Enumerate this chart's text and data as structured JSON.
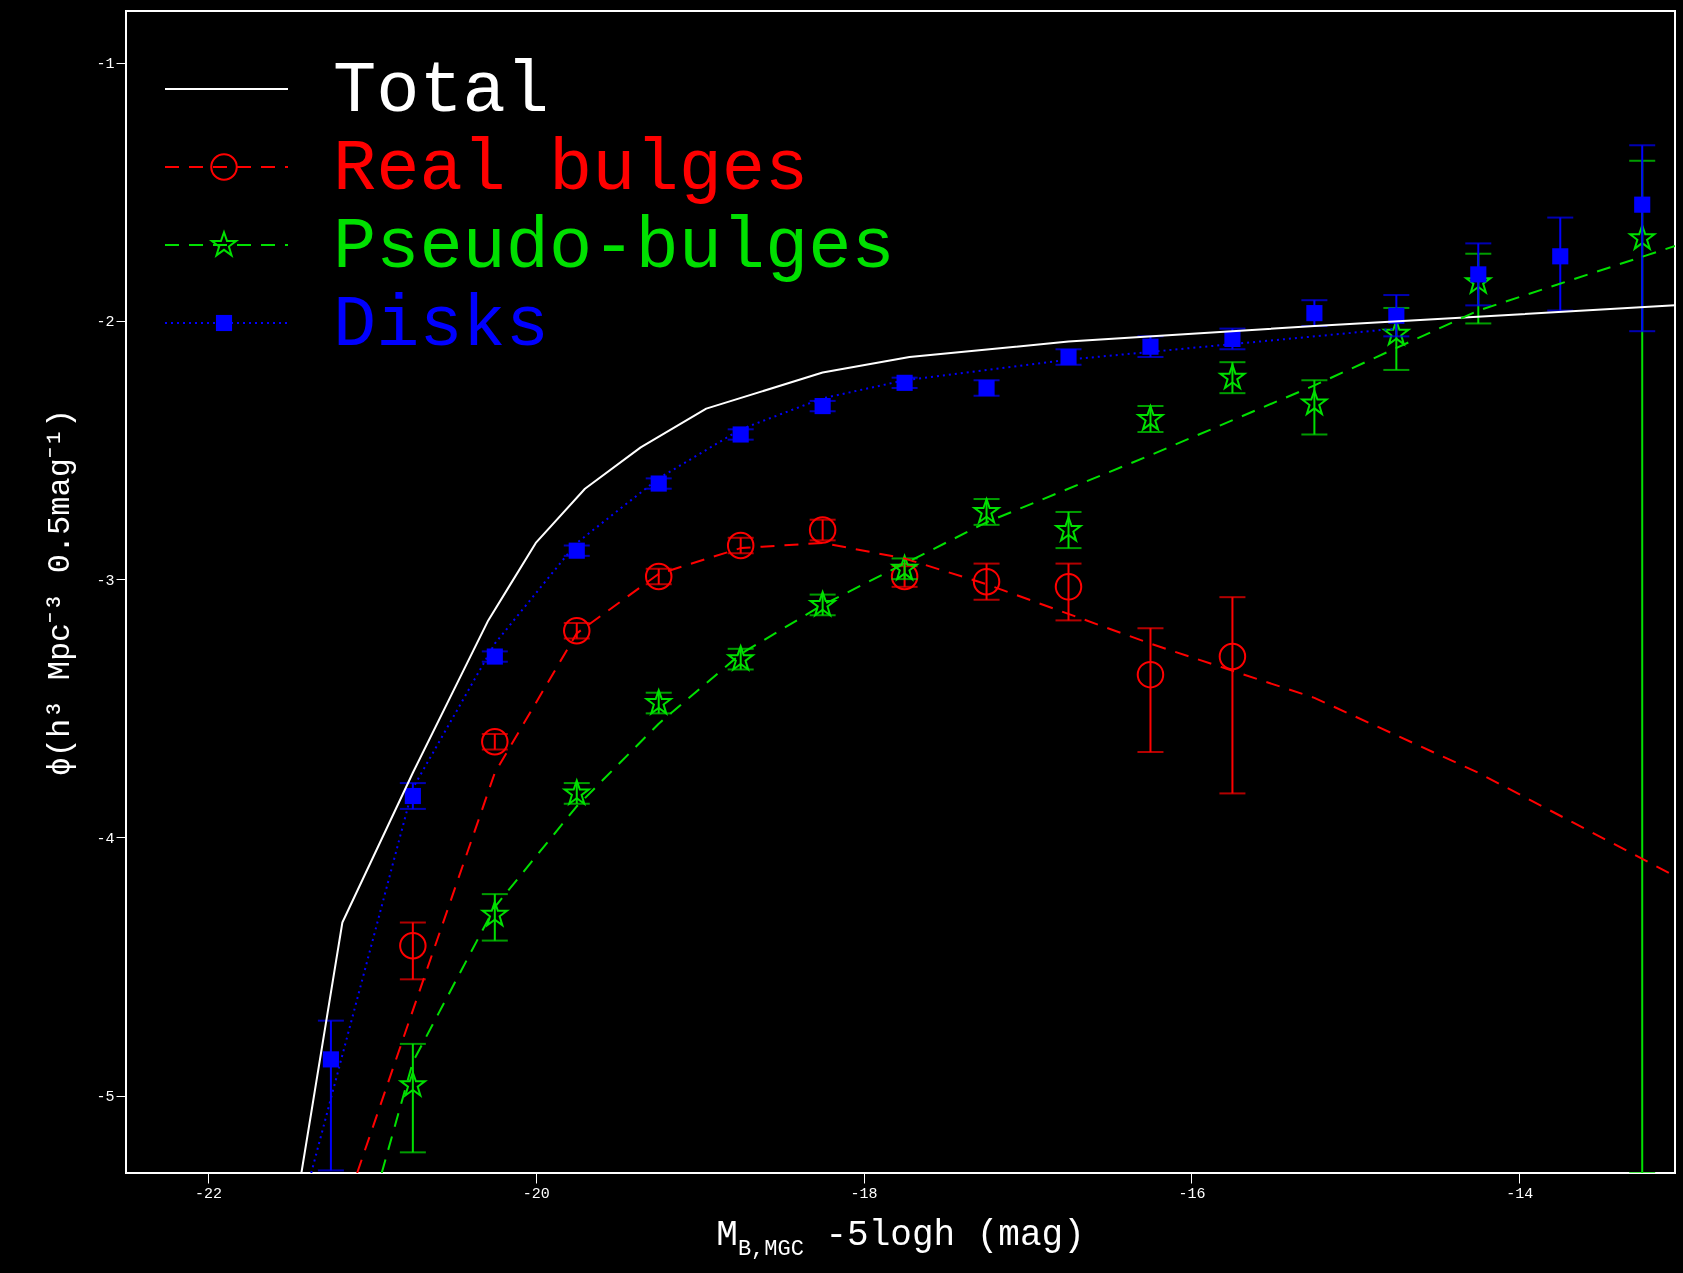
{
  "chart_data": {
    "type": "scatter",
    "xlabel": "M$_{B,MGC}$ -5logh (mag)",
    "ylabel": "ϕ(h³ Mpc⁻³ 0.5mag⁻¹)",
    "xlim": [
      -22.5,
      -13.05
    ],
    "ylim": [
      -5.3,
      -0.8
    ],
    "xticks": [
      -22,
      -20,
      -18,
      -16,
      -14
    ],
    "yticks": [
      -1,
      -2,
      -3,
      -4,
      -5
    ],
    "grid": false,
    "legend": "top left",
    "series": [
      {
        "name": "Total",
        "type": "line",
        "color": "#ffffff",
        "line_style": "solid",
        "x": [
          -21.43,
          -21.18,
          -20.75,
          -20.29,
          -20.0,
          -19.7,
          -19.36,
          -18.96,
          -18.25,
          -17.72,
          -16.75,
          -15.25,
          -13.05
        ],
        "values": [
          -5.3,
          -4.33,
          -3.75,
          -3.16,
          -2.86,
          -2.65,
          -2.49,
          -2.34,
          -2.2,
          -2.14,
          -2.08,
          -2.02,
          -1.94
        ]
      },
      {
        "name": "Real bulges",
        "color": "#ff0000",
        "marker": "circle",
        "line_style": "dashed",
        "x": [
          -20.75,
          -20.25,
          -19.75,
          -19.25,
          -18.75,
          -18.25,
          -17.75,
          -17.25,
          -16.75,
          -16.25,
          -15.75
        ],
        "values": [
          -4.42,
          -3.63,
          -3.2,
          -2.99,
          -2.87,
          -2.81,
          -2.99,
          -3.01,
          -3.03,
          -3.37,
          -3.3
        ],
        "errors": [
          [
            -4.55,
            -4.33
          ],
          [
            -3.66,
            -3.6
          ],
          [
            -3.23,
            -3.17
          ],
          [
            -3.02,
            -2.96
          ],
          [
            -2.9,
            -2.84
          ],
          [
            -2.85,
            -2.77
          ],
          [
            -3.03,
            -2.95
          ],
          [
            -3.08,
            -2.94
          ],
          [
            -3.16,
            -2.94
          ],
          [
            -3.67,
            -3.19
          ],
          [
            -3.83,
            -3.07
          ]
        ]
      },
      {
        "name": "Pseudo-bulges",
        "color": "#00e000",
        "marker": "star",
        "line_style": "dashed",
        "x": [
          -20.75,
          -20.25,
          -19.75,
          -19.25,
          -18.75,
          -18.25,
          -17.75,
          -17.25,
          -16.75,
          -16.25,
          -15.75,
          -15.25,
          -14.75,
          -14.25,
          -13.25
        ],
        "values": [
          -4.96,
          -4.3,
          -3.83,
          -3.48,
          -3.31,
          -3.1,
          -2.96,
          -2.74,
          -2.81,
          -2.38,
          -2.22,
          -2.32,
          -2.05,
          -1.85,
          -1.68
        ],
        "errors": [
          [
            -5.22,
            -4.8
          ],
          [
            -4.4,
            -4.22
          ],
          [
            -3.87,
            -3.79
          ],
          [
            -3.52,
            -3.44
          ],
          [
            -3.35,
            -3.27
          ],
          [
            -3.14,
            -3.06
          ],
          [
            -3.0,
            -2.92
          ],
          [
            -2.79,
            -2.69
          ],
          [
            -2.88,
            -2.74
          ],
          [
            -2.43,
            -2.33
          ],
          [
            -2.28,
            -2.16
          ],
          [
            -2.44,
            -2.23
          ],
          [
            -2.19,
            -1.95
          ],
          [
            -2.01,
            -1.74
          ],
          [
            -5.3,
            -1.38
          ]
        ]
      },
      {
        "name": "Disks",
        "color": "#0000ff",
        "marker": "square",
        "line_style": "dotted",
        "x": [
          -21.25,
          -20.75,
          -20.25,
          -19.75,
          -19.25,
          -18.75,
          -18.25,
          -17.75,
          -17.25,
          -16.75,
          -16.25,
          -15.75,
          -15.25,
          -14.75,
          -14.25,
          -13.75,
          -13.25
        ],
        "values": [
          -4.86,
          -3.84,
          -3.3,
          -2.89,
          -2.63,
          -2.44,
          -2.33,
          -2.24,
          -2.26,
          -2.14,
          -2.1,
          -2.07,
          -1.97,
          -1.98,
          -1.82,
          -1.75,
          -1.55
        ],
        "errors": [
          [
            -5.29,
            -4.71
          ],
          [
            -3.89,
            -3.79
          ],
          [
            -3.32,
            -3.28
          ],
          [
            -2.91,
            -2.87
          ],
          [
            -2.65,
            -2.61
          ],
          [
            -2.46,
            -2.42
          ],
          [
            -2.35,
            -2.31
          ],
          [
            -2.26,
            -2.22
          ],
          [
            -2.29,
            -2.23
          ],
          [
            -2.17,
            -2.11
          ],
          [
            -2.14,
            -2.06
          ],
          [
            -2.11,
            -2.03
          ],
          [
            -2.02,
            -1.92
          ],
          [
            -2.06,
            -1.9
          ],
          [
            -1.94,
            -1.7
          ],
          [
            -1.96,
            -1.6
          ],
          [
            -2.04,
            -1.32
          ]
        ]
      },
      {
        "type": "line",
        "color": "#ff0000",
        "line_style": "dashed",
        "x": [
          -21.09,
          -20.75,
          -20.25,
          -19.75,
          -19.25,
          -18.75,
          -18.25,
          -17.75,
          -17.25,
          -16.25,
          -15.25,
          -14.25,
          -13.05
        ],
        "values": [
          -5.3,
          -4.67,
          -3.75,
          -3.21,
          -2.98,
          -2.88,
          -2.86,
          -2.92,
          -3.02,
          -3.25,
          -3.46,
          -3.75,
          -4.15
        ]
      },
      {
        "type": "line",
        "color": "#00e000",
        "line_style": "dashed",
        "x": [
          -20.94,
          -20.75,
          -20.25,
          -19.75,
          -19.25,
          -18.75,
          -18.25,
          -17.75,
          -17.25,
          -16.25,
          -15.25,
          -14.25,
          -13.05
        ],
        "values": [
          -5.3,
          -4.87,
          -4.27,
          -3.88,
          -3.56,
          -3.29,
          -3.1,
          -2.94,
          -2.78,
          -2.52,
          -2.25,
          -1.96,
          -1.71
        ]
      },
      {
        "type": "line",
        "color": "#0000ff",
        "line_style": "dotted",
        "x": [
          -21.37,
          -20.75,
          -20.25,
          -19.75,
          -19.25,
          -18.75,
          -18.25,
          -17.75,
          -16.75,
          -15.75,
          -14.75
        ],
        "values": [
          -5.3,
          -3.81,
          -3.25,
          -2.86,
          -2.61,
          -2.42,
          -2.3,
          -2.23,
          -2.15,
          -2.09,
          -2.03
        ]
      }
    ]
  }
}
